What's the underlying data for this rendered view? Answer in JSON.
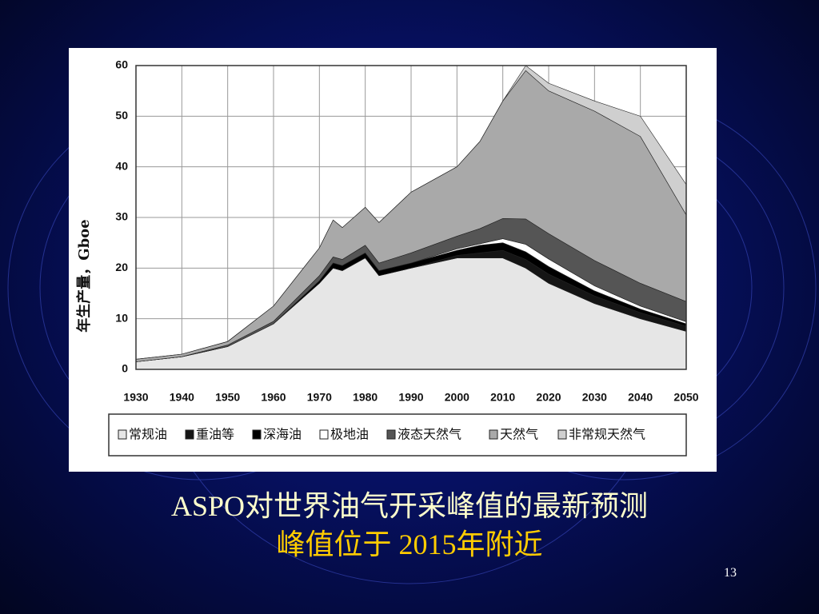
{
  "chart_data": {
    "type": "stacked_area",
    "ylabel": "年生产量，Gboe",
    "x": [
      1930,
      1940,
      1950,
      1960,
      1970,
      1973,
      1975,
      1980,
      1983,
      1990,
      2000,
      2005,
      2010,
      2015,
      2020,
      2030,
      2040,
      2050
    ],
    "series": [
      {
        "name": "常规油",
        "color": "#e6e6e6",
        "values": [
          1.5,
          2.5,
          4.5,
          9,
          17,
          20,
          19.5,
          22,
          18.5,
          20,
          22,
          22,
          22,
          20,
          17,
          13,
          10,
          7.5
        ]
      },
      {
        "name": "重油等",
        "color": "#151515",
        "values": [
          0,
          0,
          0,
          0,
          0,
          0,
          0,
          0,
          0,
          0,
          0.5,
          1,
          1.5,
          1.7,
          1.8,
          1.5,
          1.2,
          1
        ]
      },
      {
        "name": "深海油",
        "color": "#000000",
        "values": [
          0,
          0,
          0,
          0,
          0.5,
          1,
          1,
          1,
          1,
          1,
          1,
          1.5,
          1.5,
          1.5,
          1.5,
          1,
          0.7,
          0.5
        ]
      },
      {
        "name": "极地油",
        "color": "#ffffff",
        "values": [
          0,
          0,
          0,
          0,
          0,
          0,
          0,
          0,
          0,
          0,
          0.3,
          0.3,
          0.8,
          1.5,
          1.5,
          1,
          0.6,
          0.4
        ]
      },
      {
        "name": "液态天然气",
        "color": "#555555",
        "values": [
          0,
          0,
          0.3,
          0.5,
          1,
          1.2,
          1.2,
          1.5,
          1.5,
          2,
          2.5,
          3,
          4,
          5,
          5,
          5,
          4.5,
          4
        ]
      },
      {
        "name": "天然气",
        "color": "#a9a9a9",
        "values": [
          0.5,
          0.5,
          0.7,
          3,
          5.5,
          7.3,
          6.3,
          7.5,
          8,
          12,
          13.7,
          17.2,
          23.2,
          29.3,
          28.2,
          29.5,
          29,
          17.1
        ]
      },
      {
        "name": "非常规天然气",
        "color": "#cfcfcf",
        "values": [
          0,
          0,
          0,
          0,
          0,
          0,
          0,
          0,
          0,
          0,
          0,
          0,
          0,
          1,
          1.5,
          2,
          4,
          6
        ]
      }
    ],
    "xlim": [
      1930,
      2050
    ],
    "xticks": [
      1930,
      1940,
      1950,
      1960,
      1970,
      1980,
      1990,
      2000,
      2010,
      2020,
      2030,
      2040,
      2050
    ],
    "ylim": [
      0,
      60
    ],
    "yticks": [
      0,
      10,
      20,
      30,
      40,
      50,
      60
    ],
    "grid": true
  },
  "slide": {
    "title": "ASPO对世界油气开采峰值的最新预测",
    "subtitle": "峰值位于 2015年附近",
    "page": "13"
  }
}
